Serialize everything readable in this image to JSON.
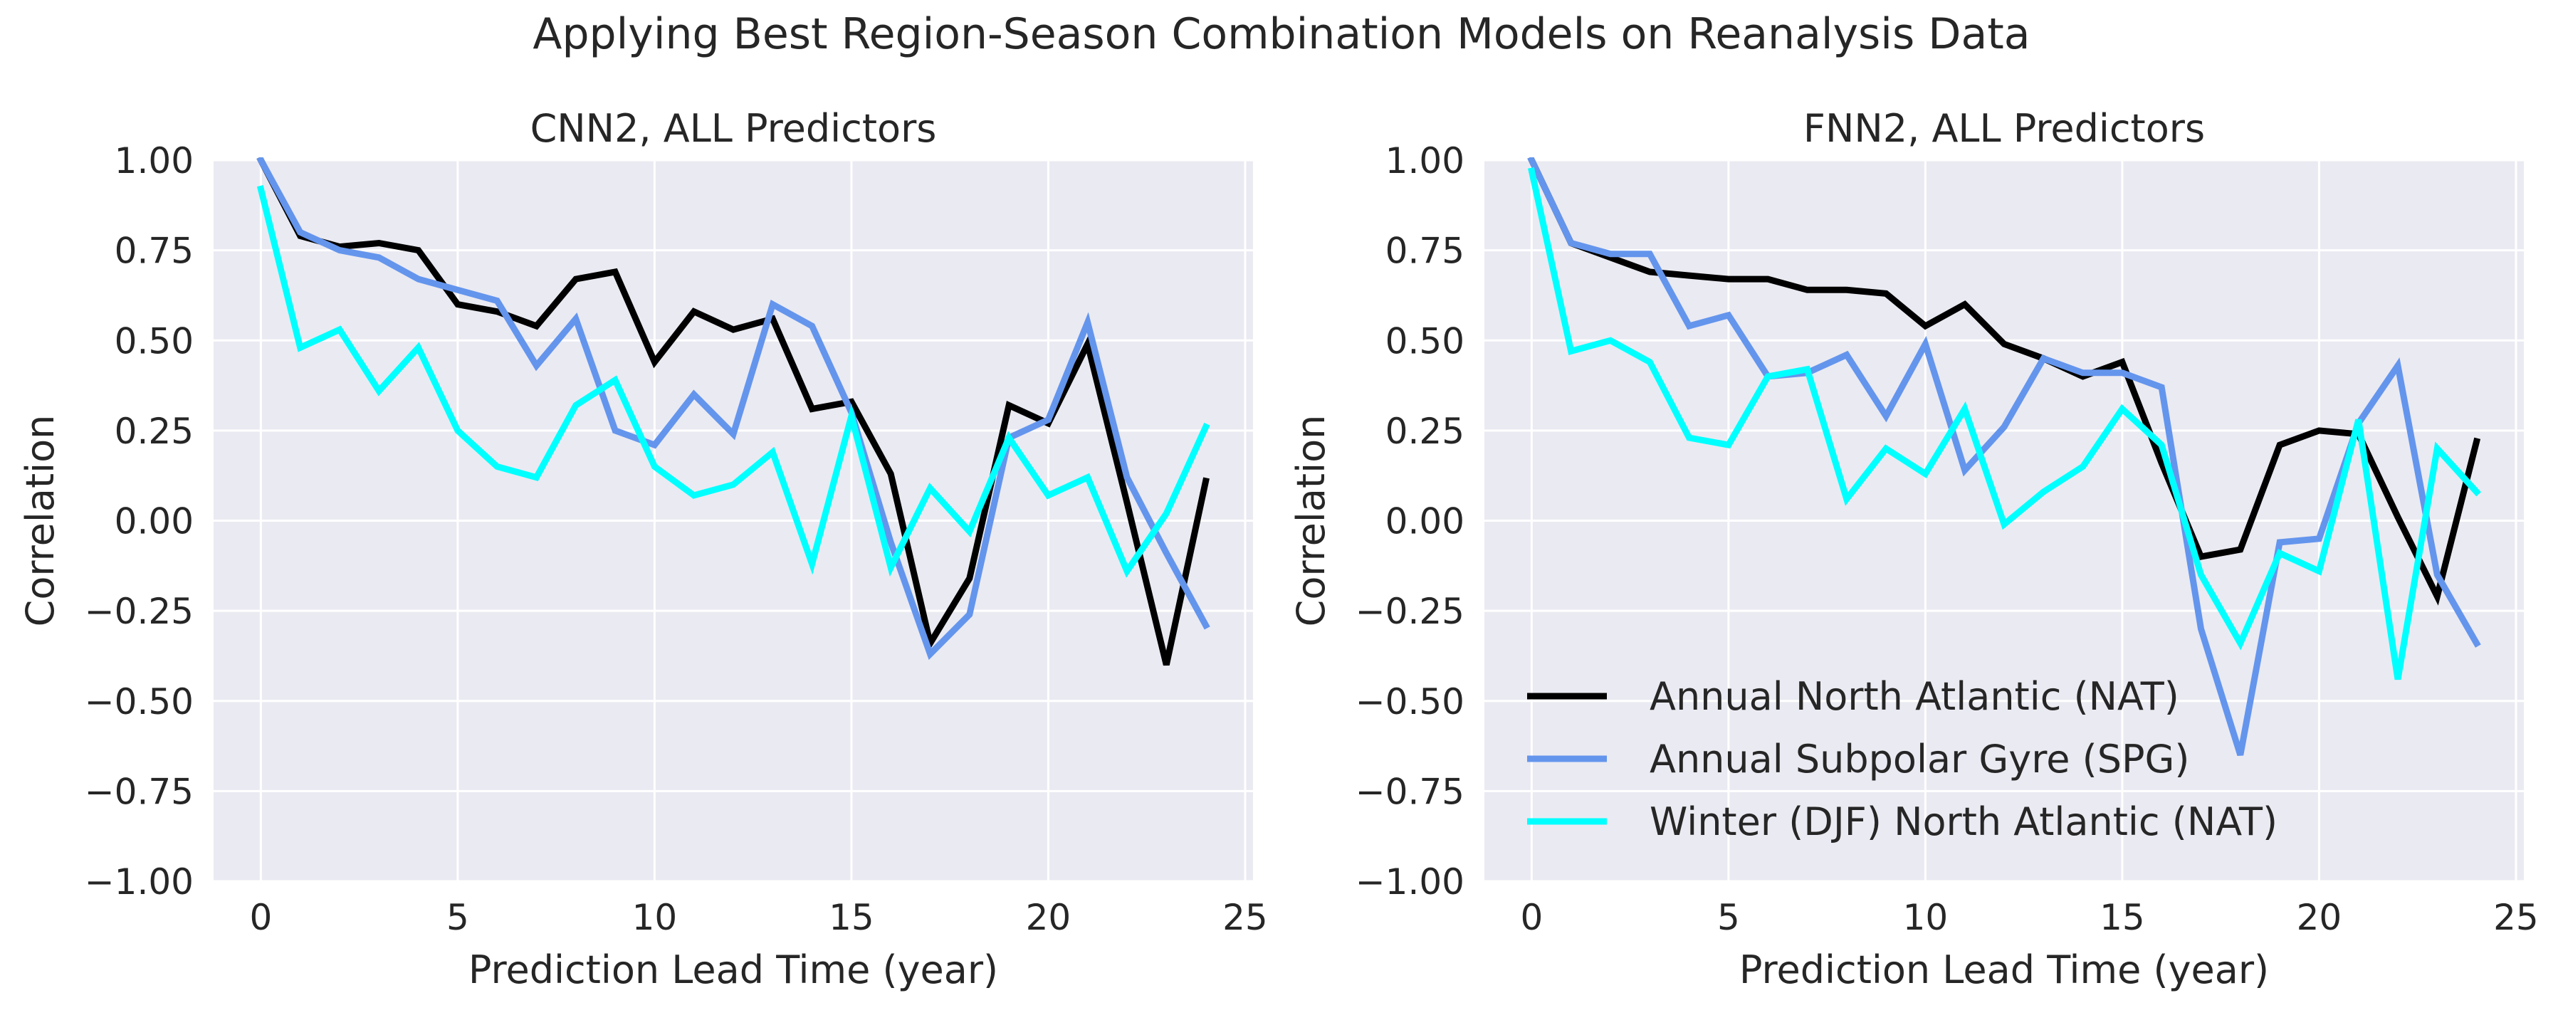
{
  "suptitle": "Applying Best Region-Season Combination Models on Reanalysis Data",
  "chart_data": [
    {
      "type": "line",
      "title": "CNN2, ALL Predictors",
      "xlabel": "Prediction Lead Time (year)",
      "ylabel": "Correlation",
      "xlim": [
        -1.2,
        25.2
      ],
      "ylim": [
        -1.0,
        1.0
      ],
      "xticks": [
        "0",
        "5",
        "10",
        "15",
        "20",
        "25"
      ],
      "yticks": [
        "1.00",
        "0.75",
        "0.50",
        "0.25",
        "0.00",
        "−0.25",
        "−0.50",
        "−0.75",
        "−1.00"
      ],
      "grid": true,
      "legend": null,
      "x": [
        0,
        1,
        2,
        3,
        4,
        5,
        6,
        7,
        8,
        9,
        10,
        11,
        12,
        13,
        14,
        15,
        16,
        17,
        18,
        19,
        20,
        21,
        22,
        23,
        24
      ],
      "series": [
        {
          "name": "Annual North Atlantic (NAT)",
          "color": "#000000",
          "values": [
            1.0,
            0.79,
            0.76,
            0.77,
            0.75,
            0.6,
            0.58,
            0.54,
            0.67,
            0.69,
            0.44,
            0.58,
            0.53,
            0.56,
            0.31,
            0.33,
            0.13,
            -0.34,
            -0.16,
            0.32,
            0.27,
            0.49,
            0.05,
            -0.4,
            0.11
          ]
        },
        {
          "name": "Annual Subpolar Gyre (SPG)",
          "color": "#6495ED",
          "values": [
            1.0,
            0.8,
            0.75,
            0.73,
            0.67,
            0.64,
            0.61,
            0.43,
            0.56,
            0.25,
            0.21,
            0.35,
            0.24,
            0.6,
            0.54,
            0.3,
            -0.06,
            -0.37,
            -0.26,
            0.23,
            0.28,
            0.55,
            0.12,
            -0.09,
            -0.29
          ]
        },
        {
          "name": "Winter (DJF) North Atlantic (NAT)",
          "color": "#00FFFF",
          "values": [
            0.92,
            0.48,
            0.53,
            0.36,
            0.48,
            0.25,
            0.15,
            0.12,
            0.32,
            0.39,
            0.15,
            0.07,
            0.1,
            0.19,
            -0.12,
            0.29,
            -0.13,
            0.09,
            -0.03,
            0.23,
            0.07,
            0.12,
            -0.14,
            0.02,
            0.26
          ]
        }
      ]
    },
    {
      "type": "line",
      "title": "FNN2, ALL Predictors",
      "xlabel": "Prediction Lead Time (year)",
      "ylabel": "Correlation",
      "xlim": [
        -1.2,
        25.2
      ],
      "ylim": [
        -1.0,
        1.0
      ],
      "xticks": [
        "0",
        "5",
        "10",
        "15",
        "20",
        "25"
      ],
      "yticks": [
        "1.00",
        "0.75",
        "0.50",
        "0.25",
        "0.00",
        "−0.25",
        "−0.50",
        "−0.75",
        "−1.00"
      ],
      "grid": true,
      "legend": "lower-left",
      "x": [
        0,
        1,
        2,
        3,
        4,
        5,
        6,
        7,
        8,
        9,
        10,
        11,
        12,
        13,
        14,
        15,
        16,
        17,
        18,
        19,
        20,
        21,
        22,
        23,
        24
      ],
      "series": [
        {
          "name": "Annual North Atlantic (NAT)",
          "color": "#000000",
          "values": [
            1.0,
            0.77,
            0.73,
            0.69,
            0.68,
            0.67,
            0.67,
            0.64,
            0.64,
            0.63,
            0.54,
            0.6,
            0.49,
            0.45,
            0.4,
            0.44,
            0.16,
            -0.1,
            -0.08,
            0.21,
            0.25,
            0.24,
            0.01,
            -0.21,
            0.22
          ]
        },
        {
          "name": "Annual Subpolar Gyre (SPG)",
          "color": "#6495ED",
          "values": [
            1.0,
            0.77,
            0.74,
            0.74,
            0.54,
            0.57,
            0.4,
            0.41,
            0.46,
            0.29,
            0.49,
            0.14,
            0.26,
            0.45,
            0.41,
            0.41,
            0.37,
            -0.3,
            -0.65,
            -0.06,
            -0.05,
            0.27,
            0.43,
            -0.15,
            -0.34
          ]
        },
        {
          "name": "Winter (DJF) North Atlantic (NAT)",
          "color": "#00FFFF",
          "values": [
            0.97,
            0.47,
            0.5,
            0.44,
            0.23,
            0.21,
            0.4,
            0.42,
            0.06,
            0.2,
            0.13,
            0.31,
            -0.01,
            0.08,
            0.15,
            0.31,
            0.21,
            -0.15,
            -0.34,
            -0.09,
            -0.14,
            0.28,
            -0.44,
            0.2,
            0.08
          ]
        }
      ]
    }
  ]
}
